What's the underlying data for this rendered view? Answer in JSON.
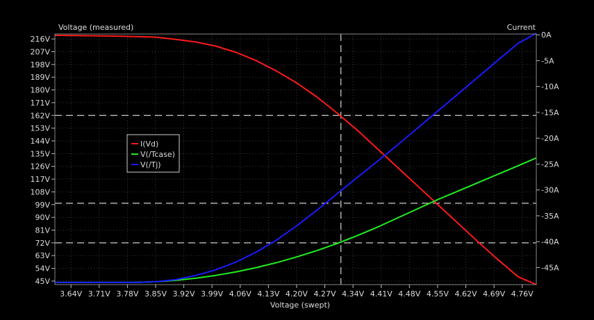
{
  "chart_data": {
    "type": "line",
    "x_axis": {
      "label": "Voltage (swept)",
      "range": [
        3.6,
        4.795
      ],
      "ticks": [
        "3.64V",
        "3.71V",
        "3.78V",
        "3.85V",
        "3.92V",
        "3.99V",
        "4.06V",
        "4.13V",
        "4.20V",
        "4.27V",
        "4.34V",
        "4.41V",
        "4.48V",
        "4.55V",
        "4.62V",
        "4.69V",
        "4.76V"
      ],
      "tick_values": [
        3.64,
        3.71,
        3.78,
        3.85,
        3.92,
        3.99,
        4.06,
        4.13,
        4.2,
        4.27,
        4.34,
        4.41,
        4.48,
        4.55,
        4.62,
        4.69,
        4.76
      ]
    },
    "y_axis_left": {
      "label": "Voltage (measured)",
      "range": [
        42.5,
        219.5
      ],
      "ticks": [
        "216V",
        "207V",
        "198V",
        "189V",
        "180V",
        "171V",
        "162V",
        "153V",
        "144V",
        "135V",
        "126V",
        "117V",
        "108V",
        "99V",
        "90V",
        "81V",
        "72V",
        "63V",
        "54V",
        "45V"
      ],
      "tick_values": [
        216,
        207,
        198,
        189,
        180,
        171,
        162,
        153,
        144,
        135,
        126,
        117,
        108,
        99,
        90,
        81,
        72,
        63,
        54,
        45
      ]
    },
    "y_axis_right": {
      "label": "Current",
      "range": [
        -48.3,
        0.15
      ],
      "ticks": [
        "0A",
        "-5A",
        "-10A",
        "-15A",
        "-20A",
        "-25A",
        "-30A",
        "-35A",
        "-40A",
        "-45A"
      ],
      "tick_values": [
        0,
        -5,
        -10,
        -15,
        -20,
        -25,
        -30,
        -35,
        -40,
        -45
      ]
    },
    "grid": true,
    "legend_position": "left-middle",
    "series": [
      {
        "name": "I(Vd)",
        "color": "#ff1a1a",
        "axis": "right",
        "x": [
          3.6,
          3.65,
          3.7,
          3.75,
          3.8,
          3.85,
          3.9,
          3.95,
          4.0,
          4.05,
          4.1,
          4.15,
          4.2,
          4.25,
          4.3,
          4.35,
          4.4,
          4.45,
          4.5,
          4.55,
          4.6,
          4.65,
          4.7,
          4.75,
          4.795
        ],
        "y": [
          -0.1,
          -0.15,
          -0.2,
          -0.25,
          -0.35,
          -0.45,
          -0.9,
          -1.4,
          -2.2,
          -3.4,
          -5.0,
          -7.0,
          -9.3,
          -12.0,
          -15.1,
          -18.4,
          -22.0,
          -25.6,
          -29.2,
          -32.8,
          -36.4,
          -40.0,
          -43.5,
          -46.8,
          -48.3
        ]
      },
      {
        "name": "V(/Tcase)",
        "color": "#22ee22",
        "axis": "left",
        "x": [
          3.6,
          3.65,
          3.7,
          3.75,
          3.8,
          3.85,
          3.9,
          3.95,
          4.0,
          4.05,
          4.1,
          4.15,
          4.2,
          4.25,
          4.3,
          4.35,
          4.4,
          4.45,
          4.5,
          4.55,
          4.6,
          4.65,
          4.7,
          4.75,
          4.795
        ],
        "y": [
          44,
          44,
          44,
          44,
          44,
          44.5,
          45.5,
          47,
          49,
          51.5,
          54.5,
          58,
          62,
          66.5,
          71.5,
          77,
          83,
          89.5,
          96,
          102.5,
          108.5,
          114.5,
          120.5,
          126.5,
          132
        ]
      },
      {
        "name": "V(/Tj)",
        "color": "#1a1aff",
        "axis": "left",
        "x": [
          3.6,
          3.65,
          3.7,
          3.75,
          3.8,
          3.85,
          3.9,
          3.95,
          4.0,
          4.05,
          4.1,
          4.15,
          4.2,
          4.25,
          4.3,
          4.35,
          4.4,
          4.45,
          4.5,
          4.55,
          4.6,
          4.65,
          4.7,
          4.75,
          4.795
        ],
        "y": [
          44,
          44,
          44,
          44,
          44,
          44.5,
          46,
          49,
          53,
          58.5,
          65.5,
          74,
          84,
          95,
          106.5,
          118,
          129.5,
          141,
          153,
          165,
          177,
          189,
          201,
          213,
          220
        ]
      }
    ],
    "cursor": {
      "x": 4.31,
      "horizontal_levels": [
        {
          "axis": "left",
          "value": 162
        },
        {
          "axis": "left",
          "value": 100
        },
        {
          "axis": "left",
          "value": 72
        }
      ]
    }
  }
}
